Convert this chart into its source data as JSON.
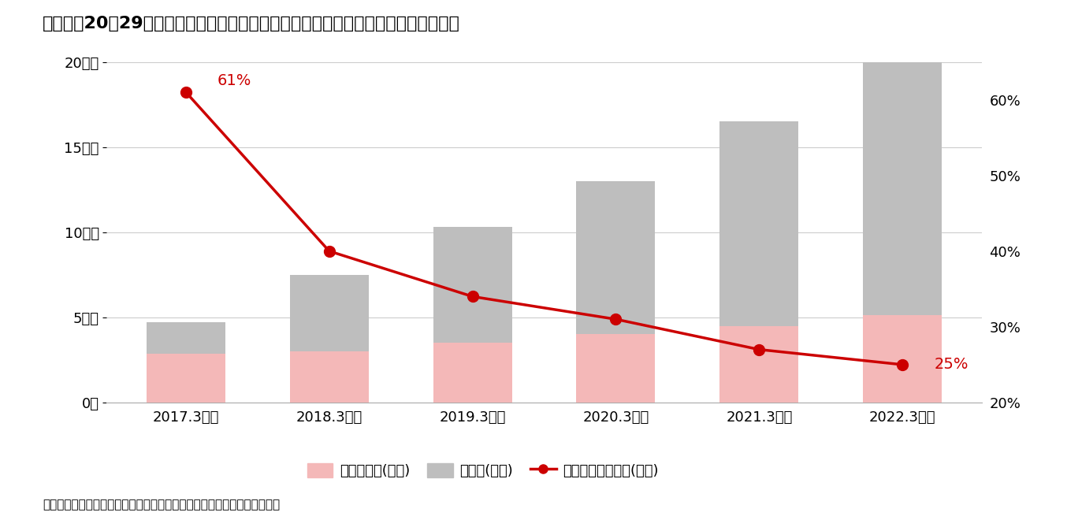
{
  "title": "図表２：20～29歳の個人型確定拠出年金加入者等に占める運用指図者の割合の推移",
  "categories": [
    "2017.3月末",
    "2018.3月末",
    "2019.3月末",
    "2020.3月末",
    "2021.3月末",
    "2022.3月末"
  ],
  "total_members": [
    4.7,
    7.5,
    10.3,
    13.0,
    16.5,
    20.5
  ],
  "investment_directors": [
    2.87,
    3.0,
    3.5,
    4.03,
    4.46,
    5.125
  ],
  "ratio": [
    61,
    40,
    34,
    31,
    27,
    25
  ],
  "ratio_labels_first": "61%",
  "ratio_labels_last": "25%",
  "bar_bottom_color": "#F4B8B8",
  "bar_top_color": "#BEBEBE",
  "line_color": "#CC0000",
  "background_color": "#FFFFFF",
  "ylim_left": [
    0,
    20
  ],
  "ylim_right": [
    20,
    65
  ],
  "yticks_left": [
    0,
    5,
    10,
    15,
    20
  ],
  "ytick_labels_left": [
    "0人",
    "5万人",
    "10万人",
    "15万人",
    "20万人"
  ],
  "yticks_right": [
    20,
    30,
    40,
    50,
    60
  ],
  "ytick_labels_right": [
    "20%",
    "30%",
    "40%",
    "50%",
    "60%"
  ],
  "legend_label_pink": "運用指図者(左軸)",
  "legend_label_gray": "加入者(左軸)",
  "legend_label_line": "運用指図者の割合(右軸)",
  "footnote": "（運営管理機関連絡協議会「確定拠出年金統計資料」より筆者にて作成）",
  "title_fontsize": 16,
  "axis_fontsize": 13,
  "legend_fontsize": 13,
  "footnote_fontsize": 11
}
